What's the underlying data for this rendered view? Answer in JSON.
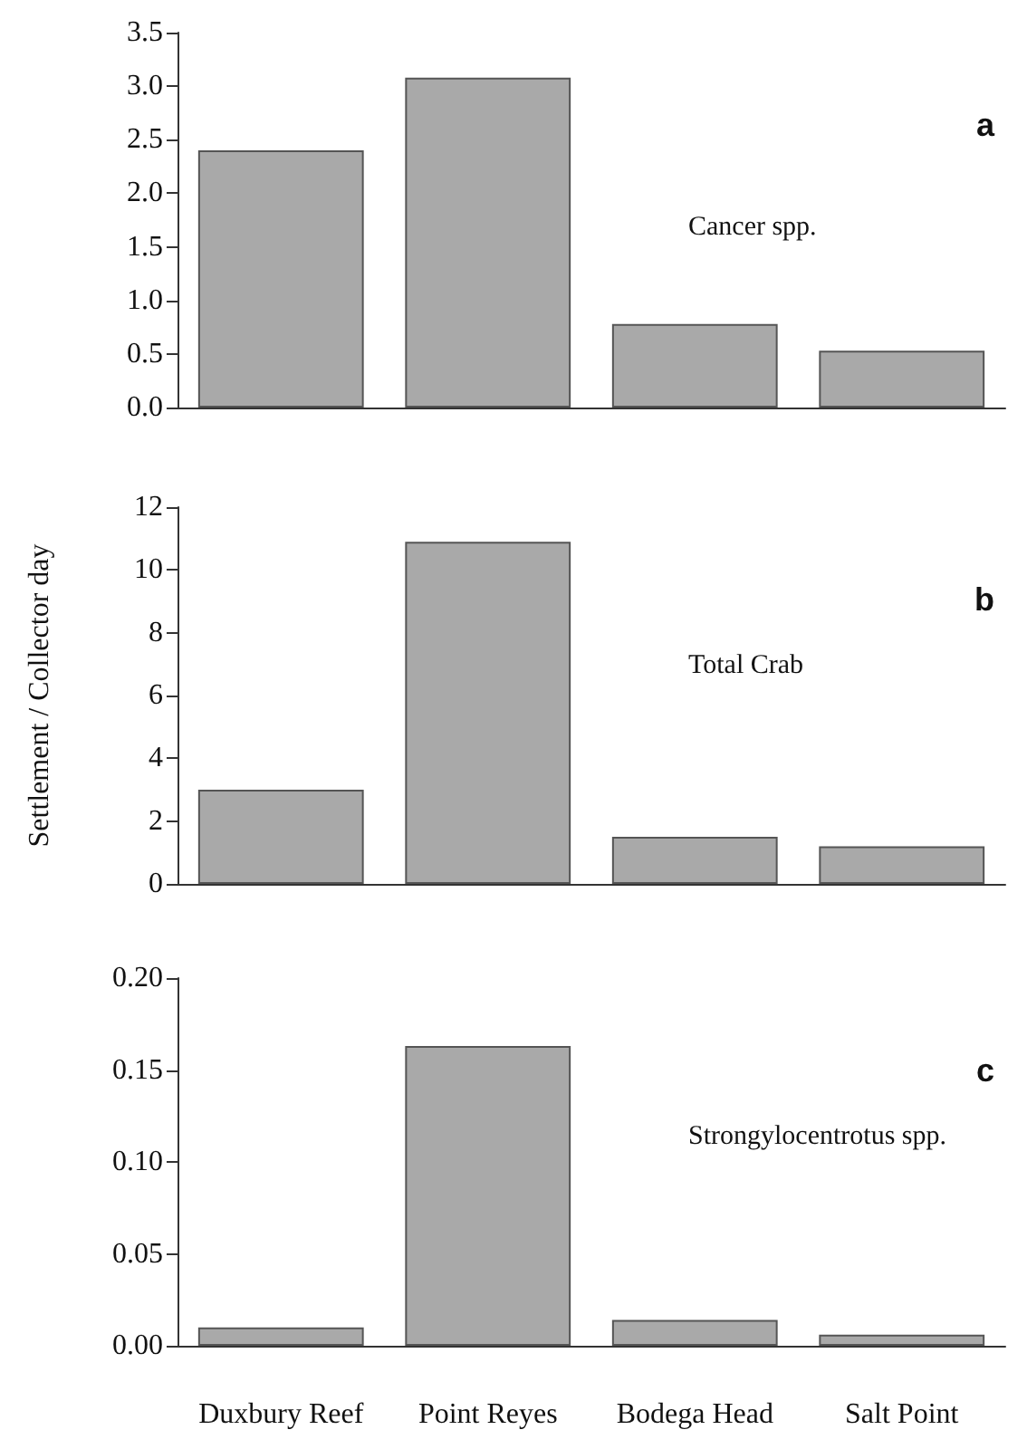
{
  "chart_data": [
    {
      "type": "bar",
      "categories": [
        null,
        null,
        null,
        null
      ],
      "series": [
        {
          "color": "#a9a9a9",
          "values": [
            2.4,
            3.08,
            0.78,
            0.53
          ]
        }
      ],
      "ylim": [
        0,
        3.5
      ],
      "yticks": [
        {
          "value": 0,
          "label": "0.0"
        },
        {
          "value": 0.5,
          "label": "0.5"
        },
        {
          "value": 1,
          "label": "1.0"
        },
        {
          "value": 1.5,
          "label": "1.5"
        },
        {
          "value": 2,
          "label": "2.0"
        },
        {
          "value": 2.5,
          "label": "2.5"
        },
        {
          "value": 3,
          "label": "3.0"
        },
        {
          "value": 3.5,
          "label": "3.5"
        }
      ],
      "annotations": [
        "a",
        "Cancer spp."
      ],
      "grid": false,
      "tick_labels": "y"
    },
    {
      "type": "bar",
      "categories": [
        null,
        null,
        null,
        null
      ],
      "series": [
        {
          "color": "#a9a9a9",
          "values": [
            3.0,
            10.9,
            1.5,
            1.2
          ]
        }
      ],
      "ylabel": "Settlement / Collector day",
      "ylim": [
        0,
        12
      ],
      "yticks": [
        0,
        2,
        4,
        6,
        8,
        10,
        12
      ],
      "annotations": [
        "b",
        "Total Crab"
      ],
      "grid": false,
      "tick_labels": "y"
    },
    {
      "type": "bar",
      "categories": [
        "Duxbury Reef",
        "Point Reyes",
        "Bodega Head",
        "Salt Point"
      ],
      "series": [
        {
          "color": "#a9a9a9",
          "values": [
            0.01,
            0.163,
            0.014,
            0.006
          ]
        }
      ],
      "ylim": [
        0,
        0.2
      ],
      "yticks": [
        {
          "value": 0,
          "label": "0.00"
        },
        {
          "value": 0.05,
          "label": "0.05"
        },
        {
          "value": 0.1,
          "label": "0.10"
        },
        {
          "value": 0.15,
          "label": "0.15"
        },
        {
          "value": 0.2,
          "label": "0.20"
        }
      ],
      "annotations": [
        "c",
        "Strongylocentrotus spp."
      ],
      "grid": false
    }
  ]
}
